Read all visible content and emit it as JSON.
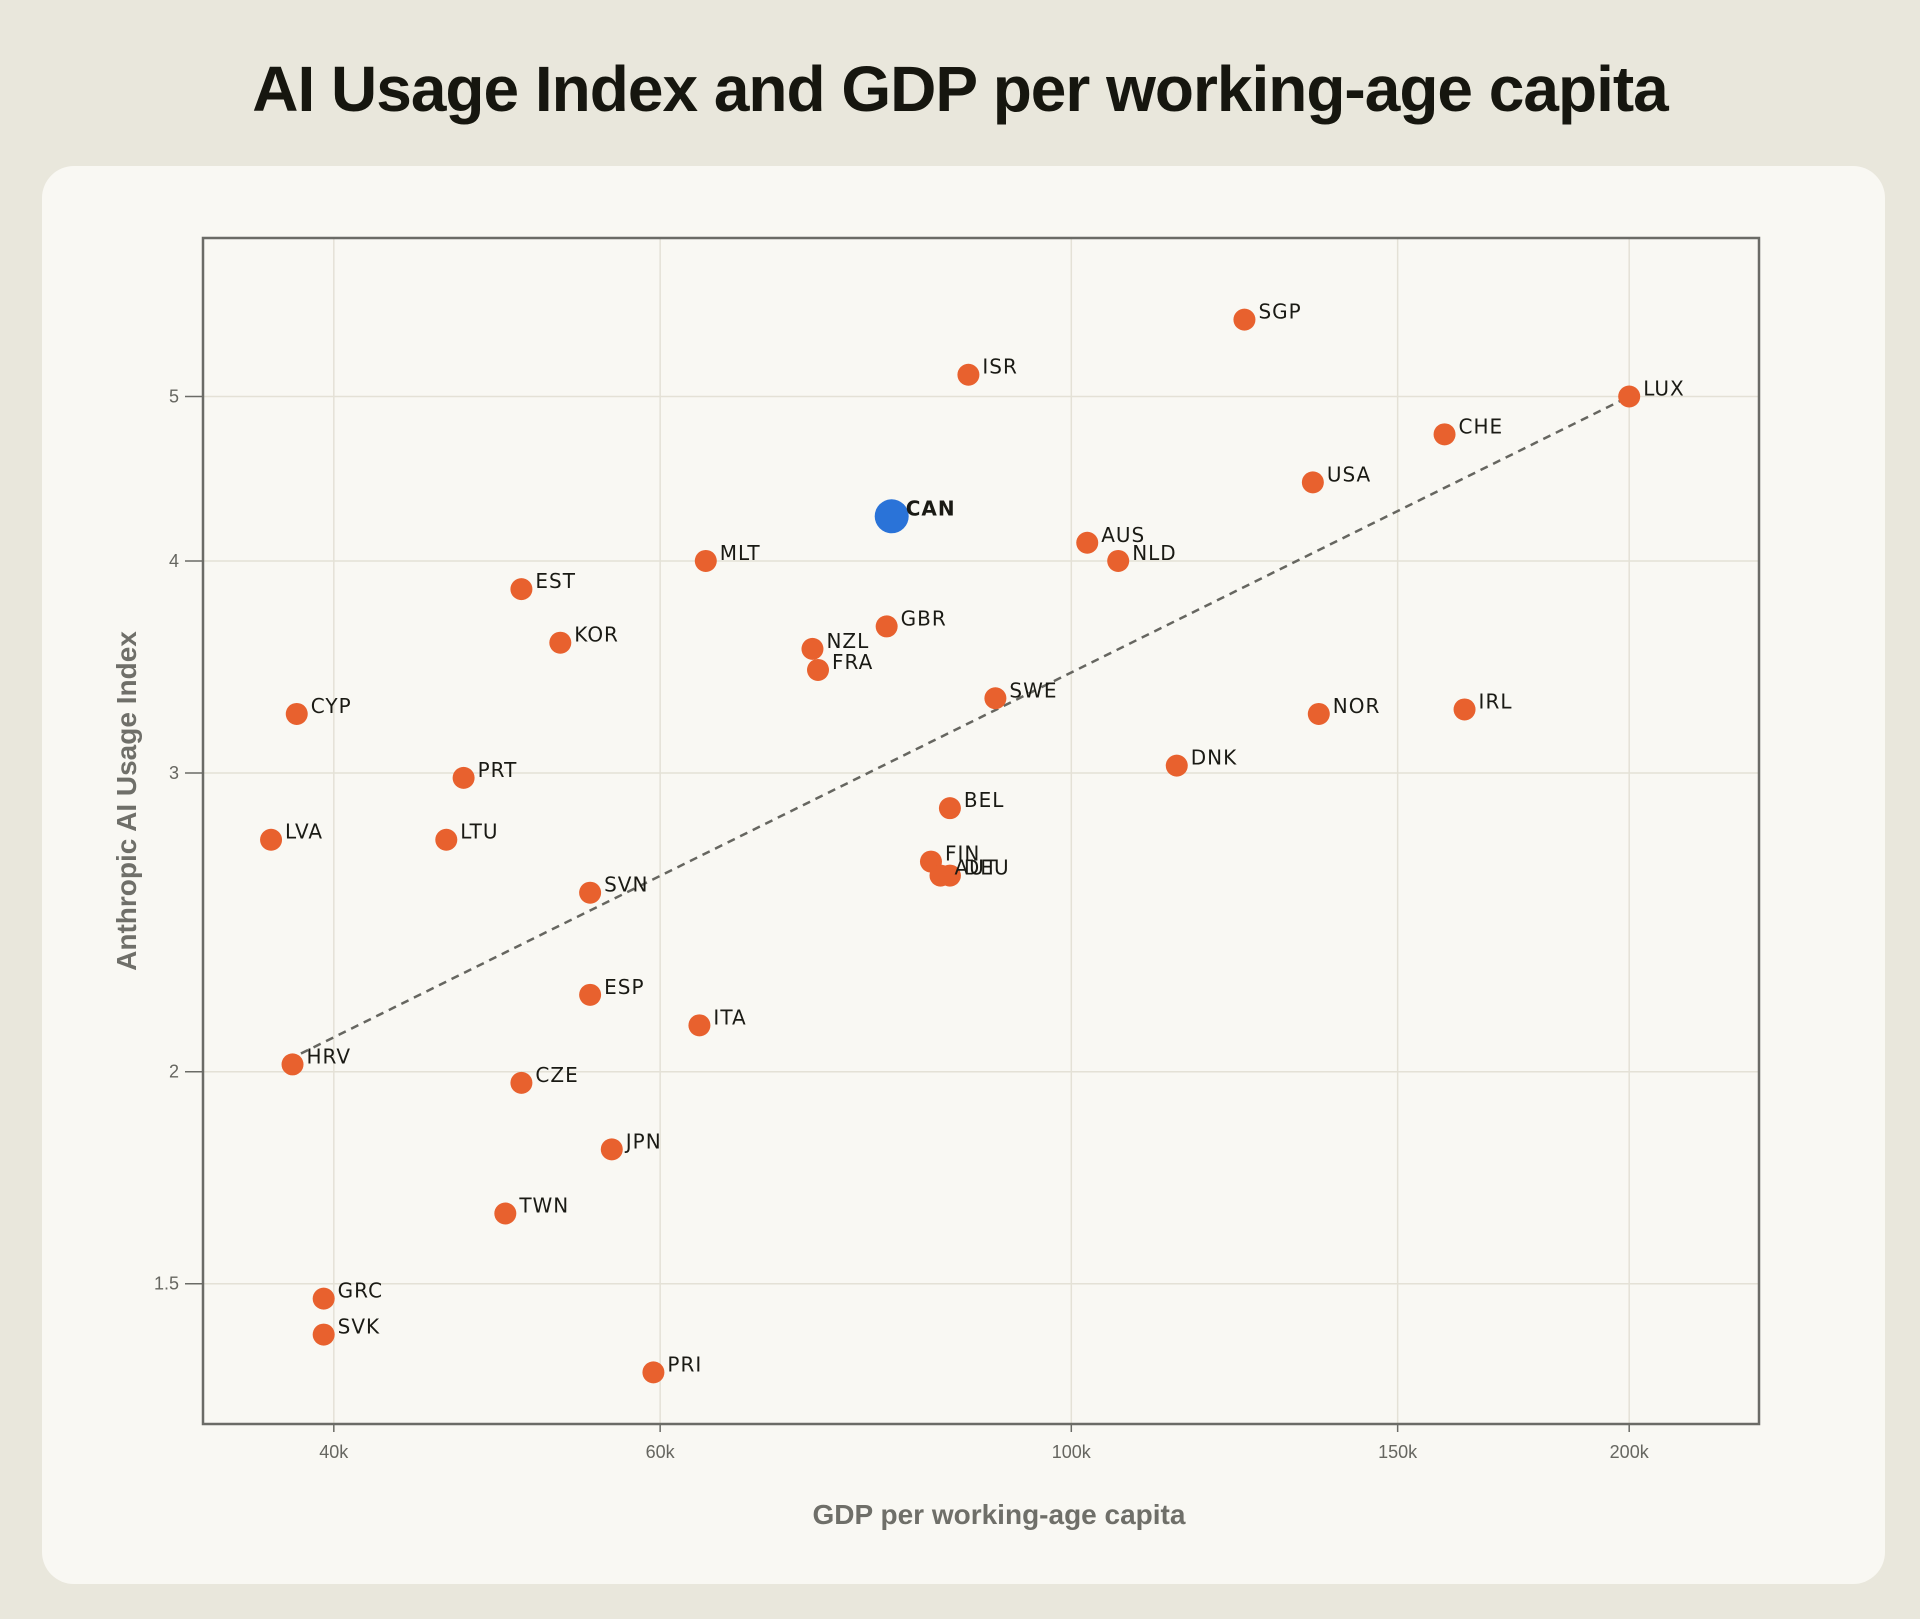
{
  "title": "AI Usage Index and GDP per working-age capita",
  "colors": {
    "background": "#e9e7dc",
    "card": "#f9f8f3",
    "point": "#e8612e",
    "highlight": "#2a73d8",
    "trend": "#666660",
    "grid": "#e4e1d6",
    "frame": "#6b6b66"
  },
  "chart_data": {
    "type": "scatter",
    "xlabel": "GDP per working-age capita",
    "ylabel": "Anthropic AI Usage Index",
    "x_scale": "log",
    "y_scale": "log",
    "xlim": [
      34000,
      235000
    ],
    "ylim": [
      1.24,
      6.2
    ],
    "x_ticks": [
      {
        "value": 40000,
        "label": "40k"
      },
      {
        "value": 60000,
        "label": "60k"
      },
      {
        "value": 100000,
        "label": "100k"
      },
      {
        "value": 150000,
        "label": "150k"
      },
      {
        "value": 200000,
        "label": "200k"
      }
    ],
    "y_ticks": [
      {
        "value": 1.5,
        "label": "1.5"
      },
      {
        "value": 2,
        "label": "2"
      },
      {
        "value": 3,
        "label": "3"
      },
      {
        "value": 4,
        "label": "4"
      },
      {
        "value": 5,
        "label": "5"
      }
    ],
    "grid": true,
    "trendline": {
      "style": "dashed",
      "x": [
        38400,
        200000
      ],
      "y": [
        2.05,
        5.0
      ]
    },
    "points": [
      {
        "label": "SGP",
        "x": 124000,
        "y": 5.55
      },
      {
        "label": "ISR",
        "x": 88000,
        "y": 5.15
      },
      {
        "label": "LUX",
        "x": 200000,
        "y": 5.0
      },
      {
        "label": "CHE",
        "x": 159000,
        "y": 4.75
      },
      {
        "label": "USA",
        "x": 135000,
        "y": 4.45
      },
      {
        "label": "CAN",
        "x": 80000,
        "y": 4.25,
        "highlight": true
      },
      {
        "label": "AUS",
        "x": 102000,
        "y": 4.1
      },
      {
        "label": "NLD",
        "x": 106000,
        "y": 4.0
      },
      {
        "label": "MLT",
        "x": 63500,
        "y": 4.0
      },
      {
        "label": "EST",
        "x": 50500,
        "y": 3.85
      },
      {
        "label": "KOR",
        "x": 53000,
        "y": 3.58
      },
      {
        "label": "GBR",
        "x": 79500,
        "y": 3.66
      },
      {
        "label": "NZL",
        "x": 72500,
        "y": 3.55
      },
      {
        "label": "FRA",
        "x": 73000,
        "y": 3.45
      },
      {
        "label": "SWE",
        "x": 91000,
        "y": 3.32
      },
      {
        "label": "CYP",
        "x": 38200,
        "y": 3.25
      },
      {
        "label": "NOR",
        "x": 136000,
        "y": 3.25
      },
      {
        "label": "IRL",
        "x": 163000,
        "y": 3.27
      },
      {
        "label": "DNK",
        "x": 114000,
        "y": 3.03
      },
      {
        "label": "PRT",
        "x": 47000,
        "y": 2.98
      },
      {
        "label": "BEL",
        "x": 86000,
        "y": 2.86
      },
      {
        "label": "LVA",
        "x": 37000,
        "y": 2.74
      },
      {
        "label": "LTU",
        "x": 46000,
        "y": 2.74
      },
      {
        "label": "FIN",
        "x": 84000,
        "y": 2.66
      },
      {
        "label": "AUT",
        "x": 85000,
        "y": 2.61
      },
      {
        "label": "DEU",
        "x": 86000,
        "y": 2.61
      },
      {
        "label": "SVN",
        "x": 55000,
        "y": 2.55
      },
      {
        "label": "ESP",
        "x": 55000,
        "y": 2.22
      },
      {
        "label": "ITA",
        "x": 63000,
        "y": 2.13
      },
      {
        "label": "HRV",
        "x": 38000,
        "y": 2.02
      },
      {
        "label": "CZE",
        "x": 50500,
        "y": 1.97
      },
      {
        "label": "JPN",
        "x": 56500,
        "y": 1.8
      },
      {
        "label": "TWN",
        "x": 49500,
        "y": 1.65
      },
      {
        "label": "GRC",
        "x": 39500,
        "y": 1.47
      },
      {
        "label": "SVK",
        "x": 39500,
        "y": 1.4
      },
      {
        "label": "PRI",
        "x": 59500,
        "y": 1.33
      }
    ]
  }
}
